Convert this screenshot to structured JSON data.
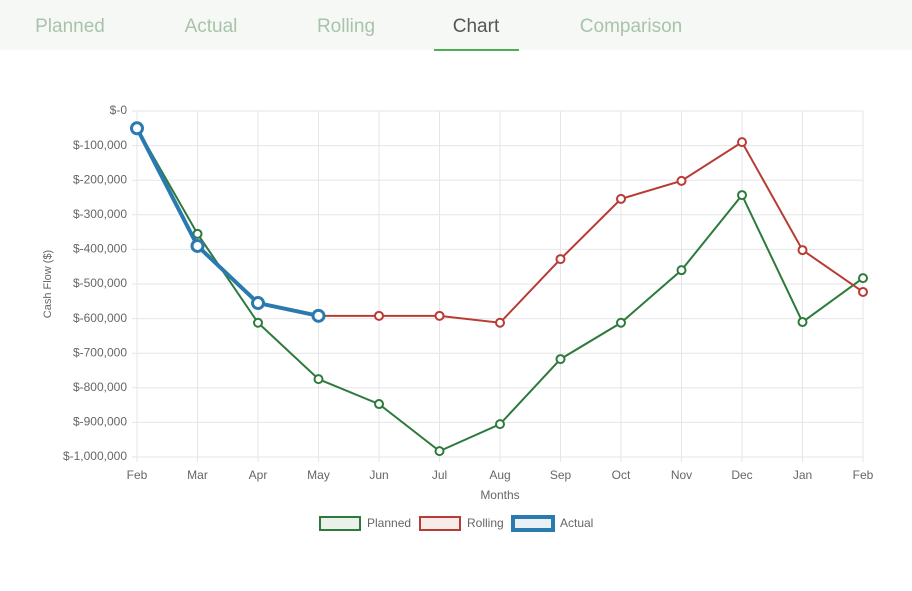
{
  "tabs": [
    "Planned",
    "Actual",
    "Rolling",
    "Chart",
    "Comparison"
  ],
  "active_tab": 3,
  "chart_data": {
    "type": "line",
    "y_label": "Cash Flow ($)",
    "x_label": "Months",
    "categories": [
      "Feb",
      "Mar",
      "Apr",
      "May",
      "Jun",
      "Jul",
      "Aug",
      "Sep",
      "Oct",
      "Nov",
      "Dec",
      "Jan",
      "Feb"
    ],
    "ylim": [
      -1000000,
      0
    ],
    "yticks": [
      {
        "value": 0,
        "label": "$-0"
      },
      {
        "value": -100000,
        "label": "$-100,000"
      },
      {
        "value": -200000,
        "label": "$-200,000"
      },
      {
        "value": -300000,
        "label": "$-300,000"
      },
      {
        "value": -400000,
        "label": "$-400,000"
      },
      {
        "value": -500000,
        "label": "$-500,000"
      },
      {
        "value": -600000,
        "label": "$-600,000"
      },
      {
        "value": -700000,
        "label": "$-700,000"
      },
      {
        "value": -800000,
        "label": "$-800,000"
      },
      {
        "value": -900000,
        "label": "$-900,000"
      },
      {
        "value": -1000000,
        "label": "$-1,000,000"
      }
    ],
    "grid": true,
    "series": [
      {
        "name": "Planned",
        "color": "#2e7a3c",
        "values": [
          -50000,
          -355000,
          -612000,
          -775000,
          -847000,
          -983000,
          -905000,
          -717000,
          -612000,
          -460000,
          -243000,
          -610000,
          -483000
        ]
      },
      {
        "name": "Rolling",
        "color": "#b83c33",
        "values": [
          -50000,
          -390000,
          -555000,
          -592000,
          -592000,
          -592000,
          -612000,
          -428000,
          -254000,
          -202000,
          -90000,
          -402000,
          -523000
        ]
      },
      {
        "name": "Actual",
        "color": "#2a7ab0",
        "values": [
          -50000,
          -390000,
          -555000,
          -592000,
          null,
          null,
          null,
          null,
          null,
          null,
          null,
          null,
          null
        ]
      }
    ]
  }
}
